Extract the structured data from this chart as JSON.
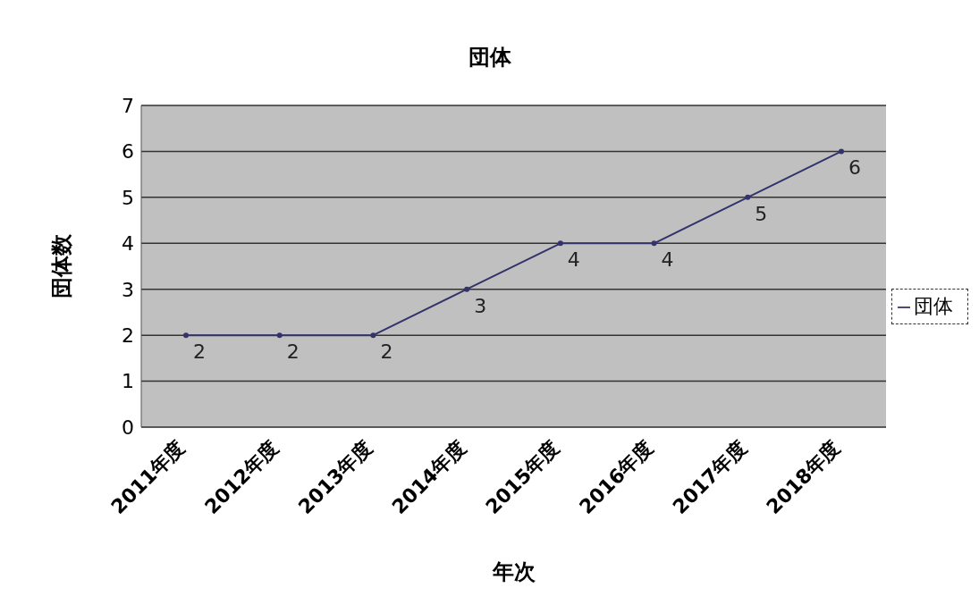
{
  "chart_data": {
    "type": "line",
    "title": "団体",
    "xlabel": "年次",
    "ylabel": "団体数",
    "categories": [
      "2011年度",
      "2012年度",
      "2013年度",
      "2014年度",
      "2015年度",
      "2016年度",
      "2017年度",
      "2018年度"
    ],
    "series": [
      {
        "name": "団体",
        "color": "#33336b",
        "values": [
          2,
          2,
          2,
          3,
          4,
          4,
          5,
          6
        ]
      }
    ],
    "ylim": [
      0,
      7
    ],
    "yticks": [
      0,
      1,
      2,
      3,
      4,
      5,
      6,
      7
    ],
    "grid": "y",
    "legend": "right",
    "marker": "circle",
    "line_style": "solid",
    "data_labels": true
  }
}
